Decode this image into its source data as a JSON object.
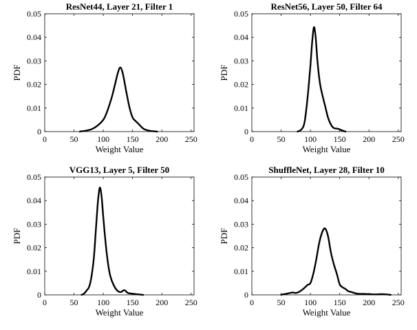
{
  "chart_data": [
    {
      "type": "line",
      "title": "ResNet44, Layer 21, Filter 1",
      "xlabel": "Weight Value",
      "ylabel": "PDF",
      "xlim": [
        0,
        255
      ],
      "ylim": [
        0,
        0.05
      ],
      "xticks": [
        "0",
        "50",
        "100",
        "150",
        "200",
        "250"
      ],
      "yticks": [
        "0",
        "0.01",
        "0.02",
        "0.03",
        "0.04",
        "0.05"
      ],
      "grid": false,
      "series": [
        {
          "x": [
            60,
            70,
            80,
            90,
            100,
            105,
            110,
            115,
            120,
            125,
            129,
            133,
            137,
            140,
            145,
            150,
            155,
            160,
            165,
            170,
            180,
            192
          ],
          "y": [
            0,
            0.0004,
            0.001,
            0.0025,
            0.005,
            0.0075,
            0.011,
            0.015,
            0.02,
            0.025,
            0.0272,
            0.025,
            0.02,
            0.016,
            0.01,
            0.006,
            0.0045,
            0.0033,
            0.002,
            0.001,
            0.0003,
            0
          ]
        }
      ]
    },
    {
      "type": "line",
      "title": "ResNet56, Layer 50, Filter 64",
      "xlabel": "Weight Value",
      "ylabel": "PDF",
      "xlim": [
        0,
        255
      ],
      "ylim": [
        0,
        0.05
      ],
      "xticks": [
        "0",
        "50",
        "100",
        "150",
        "200",
        "250"
      ],
      "yticks": [
        "0",
        "0.01",
        "0.02",
        "0.03",
        "0.04",
        "0.05"
      ],
      "grid": false,
      "series": [
        {
          "x": [
            78,
            85,
            90,
            95,
            100,
            103,
            106,
            109,
            112,
            116,
            120,
            125,
            130,
            135,
            140,
            147,
            155,
            160
          ],
          "y": [
            0,
            0.001,
            0.004,
            0.014,
            0.028,
            0.038,
            0.0443,
            0.04,
            0.03,
            0.021,
            0.016,
            0.011,
            0.006,
            0.003,
            0.0015,
            0.0012,
            0.0004,
            0
          ]
        }
      ]
    },
    {
      "type": "line",
      "title": "VGG13, Layer 5, Filter 50",
      "xlabel": "Weight Value",
      "ylabel": "PDF",
      "xlim": [
        0,
        255
      ],
      "ylim": [
        0,
        0.05
      ],
      "xticks": [
        "0",
        "50",
        "100",
        "150",
        "200",
        "250"
      ],
      "yticks": [
        "0",
        "0.01",
        "0.02",
        "0.03",
        "0.04",
        "0.05"
      ],
      "grid": false,
      "series": [
        {
          "x": [
            63,
            67,
            72,
            76,
            80,
            84,
            88,
            91,
            94,
            97,
            100,
            104,
            108,
            112,
            118,
            124,
            130,
            136,
            142,
            150,
            160,
            168
          ],
          "y": [
            0,
            0.0005,
            0.002,
            0.0035,
            0.008,
            0.016,
            0.03,
            0.04,
            0.0455,
            0.042,
            0.033,
            0.022,
            0.0135,
            0.008,
            0.004,
            0.0018,
            0.0012,
            0.002,
            0.0008,
            0.0005,
            0.0002,
            0
          ]
        }
      ]
    },
    {
      "type": "line",
      "title": "ShuffleNet, Layer 28, Filter 10",
      "xlabel": "Weight Value",
      "ylabel": "PDF",
      "xlim": [
        0,
        255
      ],
      "ylim": [
        0,
        0.05
      ],
      "xticks": [
        "0",
        "50",
        "100",
        "150",
        "200",
        "250"
      ],
      "yticks": [
        "0",
        "0.01",
        "0.02",
        "0.03",
        "0.04",
        "0.05"
      ],
      "grid": false,
      "series": [
        {
          "x": [
            50,
            55,
            60,
            65,
            70,
            75,
            80,
            85,
            90,
            95,
            100,
            105,
            110,
            115,
            120,
            125,
            130,
            135,
            140,
            145,
            150,
            155,
            160,
            165,
            170,
            175,
            180,
            190,
            200,
            210,
            220,
            230,
            237
          ],
          "y": [
            0,
            0.0003,
            0.0005,
            0.0008,
            0.001,
            0.0008,
            0.0012,
            0.002,
            0.003,
            0.0042,
            0.005,
            0.009,
            0.015,
            0.022,
            0.0265,
            0.0282,
            0.025,
            0.018,
            0.013,
            0.009,
            0.0045,
            0.0032,
            0.0025,
            0.0015,
            0.0012,
            0.0008,
            0.0005,
            0.0004,
            0.0003,
            0.0002,
            0.0003,
            0.0002,
            0
          ]
        }
      ]
    }
  ]
}
